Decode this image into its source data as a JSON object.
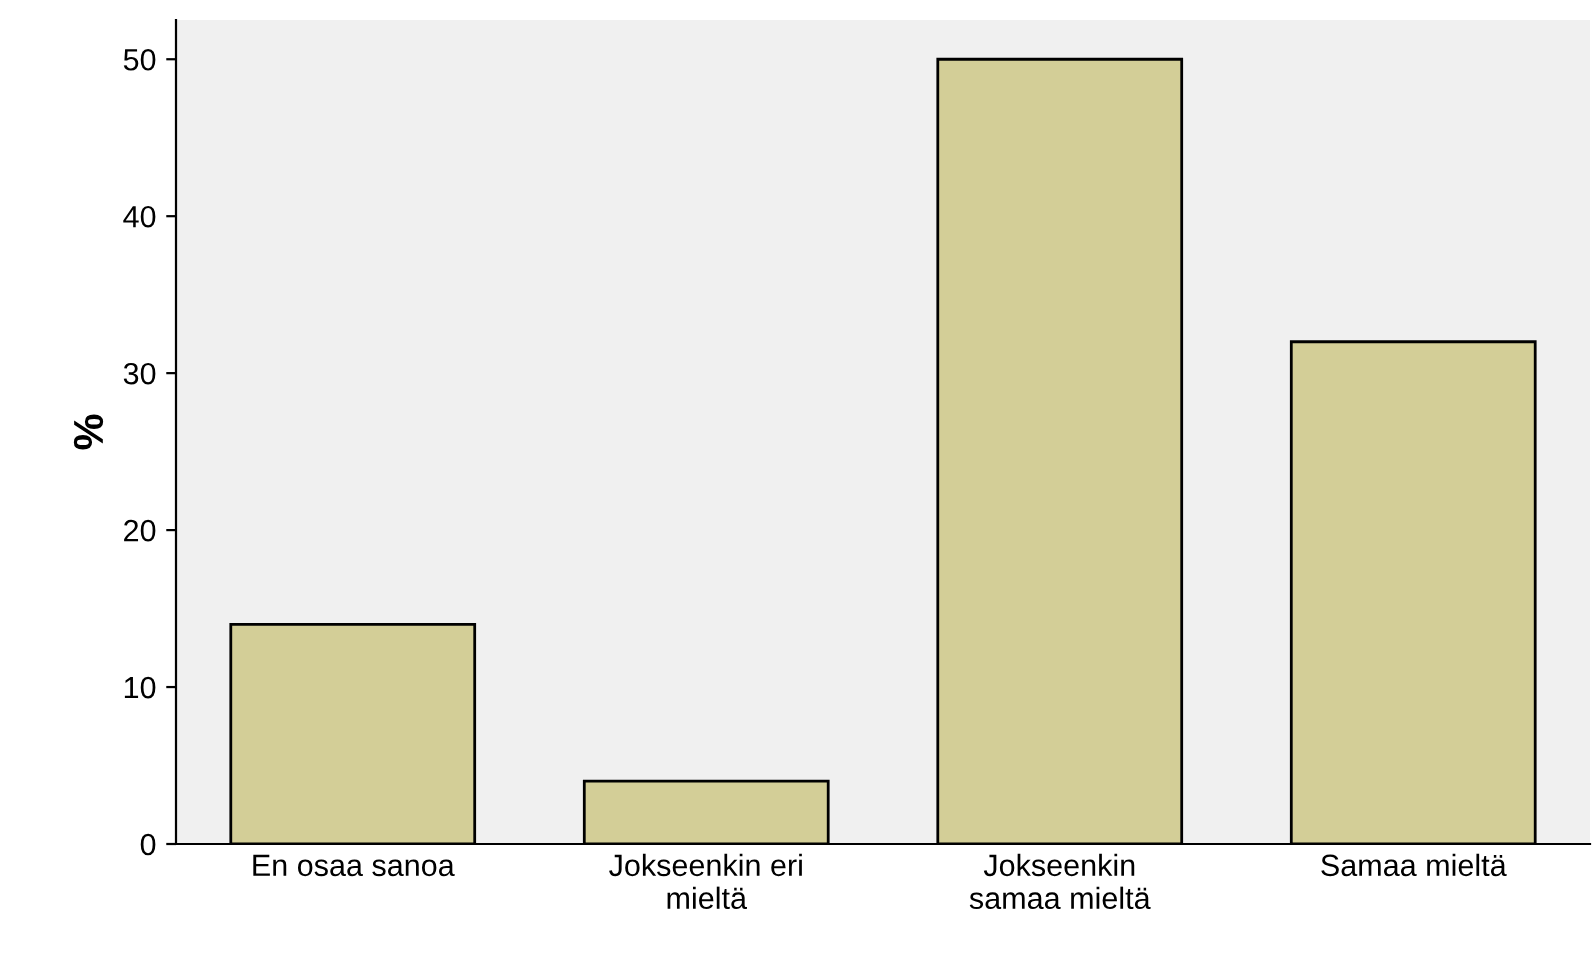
{
  "chart_data": {
    "type": "bar",
    "ylabel": "%",
    "categories": [
      "En osaa sanoa",
      "Jokseenkin eri\nmieltä",
      "Jokseenkin\nsamaa mieltä",
      "Samaa mieltä"
    ],
    "values": [
      14,
      4,
      50,
      32
    ],
    "color": "#d3ce97",
    "ylim": [
      0,
      52.5
    ],
    "yticks": [
      0,
      10,
      20,
      30,
      40,
      50
    ],
    "grid": false
  }
}
